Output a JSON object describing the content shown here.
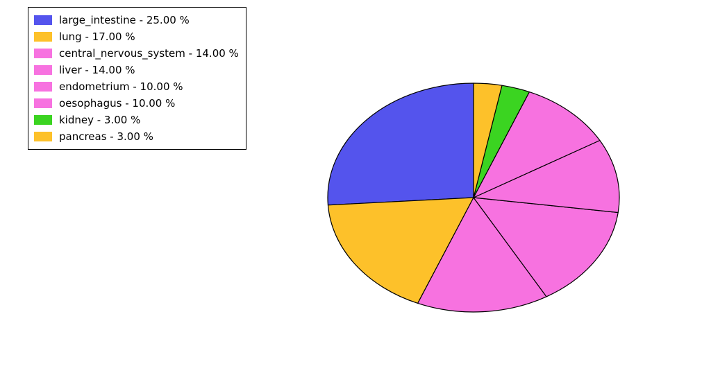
{
  "pie_chart": {
    "type": "pie",
    "background_color": "#ffffff",
    "edge_color": "#000000",
    "edge_width": 1.2,
    "start_angle_deg": 90,
    "direction": "clockwise",
    "ellipse_rx": 210,
    "ellipse_ry": 165,
    "legend": {
      "position": "upper-left",
      "border_color": "#000000",
      "border_width": 1,
      "font_size": 15,
      "swatch_w": 26,
      "swatch_h": 14
    },
    "slices": [
      {
        "label": "large_intestine",
        "percent": 25.0,
        "color": "#5454ed"
      },
      {
        "label": "lung",
        "percent": 17.0,
        "color": "#fdc12a"
      },
      {
        "label": "central_nervous_system",
        "percent": 14.0,
        "color": "#f772e0"
      },
      {
        "label": "liver",
        "percent": 14.0,
        "color": "#f772e0"
      },
      {
        "label": "endometrium",
        "percent": 10.0,
        "color": "#f772e0"
      },
      {
        "label": "oesophagus",
        "percent": 10.0,
        "color": "#f772e0"
      },
      {
        "label": "kidney",
        "percent": 3.0,
        "color": "#3bd421"
      },
      {
        "label": "pancreas",
        "percent": 3.0,
        "color": "#fdc12a"
      }
    ]
  }
}
